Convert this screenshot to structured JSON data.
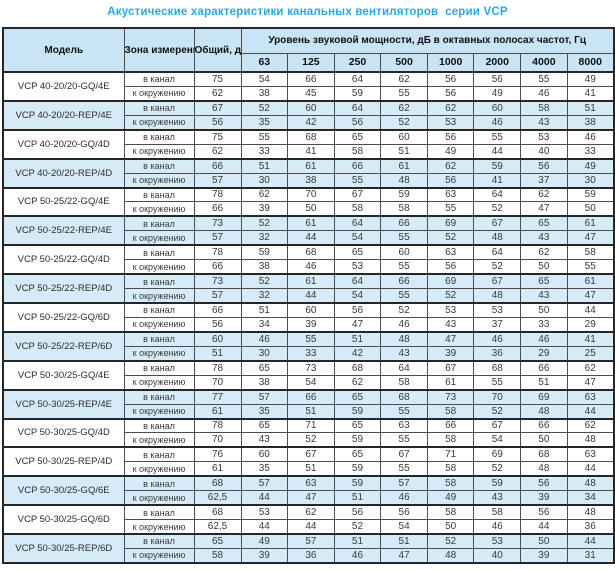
{
  "title": "Акустические характеристики канальных вентиляторов  серии VCP",
  "colors": {
    "title": "#29a9e0",
    "header_bg": "#c9e4f4",
    "shaded_row_bg": "#d5ebf8",
    "border": "#4c4c4c"
  },
  "table": {
    "headers": {
      "model": "Модель",
      "zone": "Зона измерения",
      "total": "Общий, дБА",
      "spectrum": "Уровень звуковой мощности, дБ в октавных полосах частот, Гц",
      "frequencies": [
        "63",
        "125",
        "250",
        "500",
        "1000",
        "2000",
        "4000",
        "8000"
      ]
    },
    "zone_labels": {
      "duct": "в канал",
      "ambient": "к окружению"
    },
    "models": [
      {
        "name": "VCP 40-20/20-GQ/4E",
        "shaded": false,
        "rows": [
          {
            "zone": "в канал",
            "total": "75",
            "values": [
              "54",
              "66",
              "64",
              "62",
              "56",
              "56",
              "55",
              "49"
            ]
          },
          {
            "zone": "к окружению",
            "total": "62",
            "values": [
              "38",
              "45",
              "59",
              "55",
              "56",
              "49",
              "46",
              "41"
            ]
          }
        ]
      },
      {
        "name": "VCP 40-20/20-REP/4E",
        "shaded": true,
        "rows": [
          {
            "zone": "в канал",
            "total": "67",
            "values": [
              "52",
              "60",
              "64",
              "62",
              "62",
              "60",
              "58",
              "51"
            ]
          },
          {
            "zone": "к окружению",
            "total": "56",
            "values": [
              "35",
              "42",
              "56",
              "52",
              "53",
              "46",
              "43",
              "38"
            ]
          }
        ]
      },
      {
        "name": "VCP 40-20/20-GQ/4D",
        "shaded": false,
        "rows": [
          {
            "zone": "в канал",
            "total": "75",
            "values": [
              "55",
              "68",
              "65",
              "60",
              "56",
              "55",
              "53",
              "46"
            ]
          },
          {
            "zone": "к окружению",
            "total": "62",
            "values": [
              "33",
              "41",
              "58",
              "51",
              "49",
              "44",
              "40",
              "33"
            ]
          }
        ]
      },
      {
        "name": "VCP 40-20/20-REP/4D",
        "shaded": true,
        "rows": [
          {
            "zone": "в канал",
            "total": "66",
            "values": [
              "51",
              "61",
              "66",
              "61",
              "62",
              "59",
              "56",
              "49"
            ]
          },
          {
            "zone": "к окружению",
            "total": "57",
            "values": [
              "30",
              "38",
              "55",
              "48",
              "56",
              "41",
              "37",
              "30"
            ]
          }
        ]
      },
      {
        "name": "VCP 50-25/22-GQ/4E",
        "shaded": false,
        "rows": [
          {
            "zone": "в канал",
            "total": "78",
            "values": [
              "62",
              "70",
              "67",
              "59",
              "63",
              "64",
              "62",
              "59"
            ]
          },
          {
            "zone": "к окружению",
            "total": "66",
            "values": [
              "39",
              "50",
              "58",
              "58",
              "55",
              "52",
              "47",
              "50"
            ]
          }
        ]
      },
      {
        "name": "VCP 50-25/22-REP/4E",
        "shaded": true,
        "rows": [
          {
            "zone": "в канал",
            "total": "73",
            "values": [
              "52",
              "61",
              "64",
              "66",
              "69",
              "67",
              "65",
              "61"
            ]
          },
          {
            "zone": "к окружению",
            "total": "57",
            "values": [
              "32",
              "44",
              "54",
              "55",
              "52",
              "48",
              "43",
              "47"
            ]
          }
        ]
      },
      {
        "name": "VCP 50-25/22-GQ/4D",
        "shaded": false,
        "rows": [
          {
            "zone": "в канал",
            "total": "78",
            "values": [
              "59",
              "68",
              "65",
              "60",
              "63",
              "64",
              "62",
              "58"
            ]
          },
          {
            "zone": "к окружению",
            "total": "66",
            "values": [
              "38",
              "46",
              "53",
              "55",
              "56",
              "52",
              "50",
              "55"
            ]
          }
        ]
      },
      {
        "name": "VCP 50-25/22-REP/4D",
        "shaded": true,
        "rows": [
          {
            "zone": "в канал",
            "total": "73",
            "values": [
              "52",
              "61",
              "64",
              "66",
              "69",
              "67",
              "65",
              "61"
            ]
          },
          {
            "zone": "к окружению",
            "total": "57",
            "values": [
              "32",
              "44",
              "54",
              "55",
              "52",
              "48",
              "43",
              "47"
            ]
          }
        ]
      },
      {
        "name": "VCP 50-25/22-GQ/6D",
        "shaded": false,
        "rows": [
          {
            "zone": "в канал",
            "total": "66",
            "values": [
              "51",
              "60",
              "56",
              "52",
              "53",
              "53",
              "50",
              "44"
            ]
          },
          {
            "zone": "к окружению",
            "total": "56",
            "values": [
              "34",
              "39",
              "47",
              "46",
              "43",
              "37",
              "33",
              "29"
            ]
          }
        ]
      },
      {
        "name": "VCP 50-25/22-REP/6D",
        "shaded": true,
        "rows": [
          {
            "zone": "в канал",
            "total": "60",
            "values": [
              "46",
              "55",
              "51",
              "48",
              "47",
              "46",
              "46",
              "41"
            ]
          },
          {
            "zone": "к окружению",
            "total": "51",
            "values": [
              "30",
              "33",
              "42",
              "43",
              "39",
              "36",
              "29",
              "25"
            ]
          }
        ]
      },
      {
        "name": "VCP 50-30/25-GQ/4E",
        "shaded": false,
        "rows": [
          {
            "zone": "в канал",
            "total": "78",
            "values": [
              "65",
              "73",
              "68",
              "64",
              "67",
              "68",
              "66",
              "62"
            ]
          },
          {
            "zone": "к окружению",
            "total": "70",
            "values": [
              "38",
              "54",
              "62",
              "58",
              "61",
              "55",
              "51",
              "47"
            ]
          }
        ]
      },
      {
        "name": "VCP 50-30/25-REP/4E",
        "shaded": true,
        "rows": [
          {
            "zone": "в канал",
            "total": "77",
            "values": [
              "57",
              "66",
              "65",
              "68",
              "73",
              "70",
              "69",
              "63"
            ]
          },
          {
            "zone": "к окружению",
            "total": "61",
            "values": [
              "35",
              "51",
              "59",
              "55",
              "58",
              "52",
              "48",
              "44"
            ]
          }
        ]
      },
      {
        "name": "VCP 50-30/25-GQ/4D",
        "shaded": false,
        "rows": [
          {
            "zone": "в канал",
            "total": "78",
            "values": [
              "65",
              "71",
              "65",
              "63",
              "66",
              "67",
              "66",
              "62"
            ]
          },
          {
            "zone": "к окружению",
            "total": "70",
            "values": [
              "43",
              "52",
              "59",
              "55",
              "58",
              "54",
              "50",
              "48"
            ]
          }
        ]
      },
      {
        "name": "VCP 50-30/25-REP/4D",
        "shaded": false,
        "rows": [
          {
            "zone": "в канал",
            "total": "76",
            "values": [
              "60",
              "67",
              "65",
              "67",
              "71",
              "69",
              "68",
              "63"
            ]
          },
          {
            "zone": "к окружению",
            "total": "61",
            "values": [
              "35",
              "51",
              "59",
              "55",
              "58",
              "52",
              "48",
              "44"
            ]
          }
        ]
      },
      {
        "name": "VCP 50-30/25-GQ/6E",
        "shaded": true,
        "rows": [
          {
            "zone": "в канал",
            "total": "68",
            "values": [
              "57",
              "63",
              "59",
              "57",
              "58",
              "59",
              "56",
              "48"
            ]
          },
          {
            "zone": "к окружению",
            "total": "62,5",
            "values": [
              "44",
              "47",
              "51",
              "46",
              "49",
              "43",
              "39",
              "34"
            ]
          }
        ]
      },
      {
        "name": "VCP 50-30/25-GQ/6D",
        "shaded": false,
        "rows": [
          {
            "zone": "в канал",
            "total": "68",
            "values": [
              "53",
              "62",
              "56",
              "56",
              "58",
              "58",
              "56",
              "48"
            ]
          },
          {
            "zone": "к окружению",
            "total": "62,5",
            "values": [
              "44",
              "44",
              "52",
              "54",
              "50",
              "46",
              "44",
              "36"
            ]
          }
        ]
      },
      {
        "name": "VCP 50-30/25-REP/6D",
        "shaded": true,
        "rows": [
          {
            "zone": "в канал",
            "total": "65",
            "values": [
              "49",
              "57",
              "51",
              "51",
              "52",
              "53",
              "50",
              "44"
            ]
          },
          {
            "zone": "к окружению",
            "total": "58",
            "values": [
              "39",
              "36",
              "46",
              "47",
              "48",
              "40",
              "39",
              "31"
            ]
          }
        ]
      }
    ]
  }
}
